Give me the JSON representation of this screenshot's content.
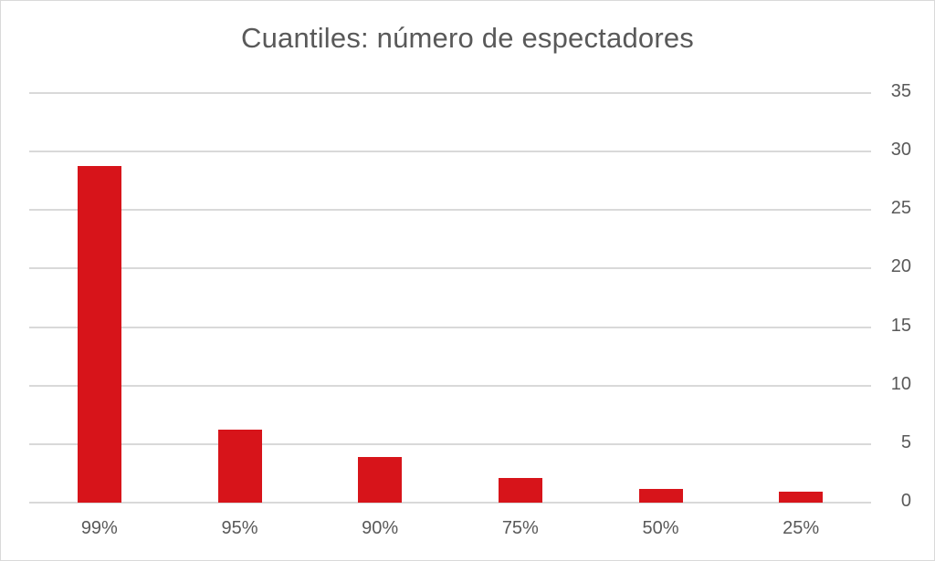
{
  "chart_data": {
    "type": "bar",
    "title": "Cuantiles: número de espectadores",
    "categories": [
      "99%",
      "95%",
      "90%",
      "75%",
      "50%",
      "25%"
    ],
    "values": [
      28.8,
      6.2,
      3.9,
      2.1,
      1.2,
      0.9
    ],
    "xlabel": "",
    "ylabel": "",
    "ylim": [
      0,
      35
    ],
    "yticks": [
      "0",
      "5",
      "10",
      "15",
      "20",
      "25",
      "30",
      "35"
    ],
    "y_axis_position": "right",
    "grid": true,
    "legend": "none",
    "bar_color": "#d7141a"
  }
}
